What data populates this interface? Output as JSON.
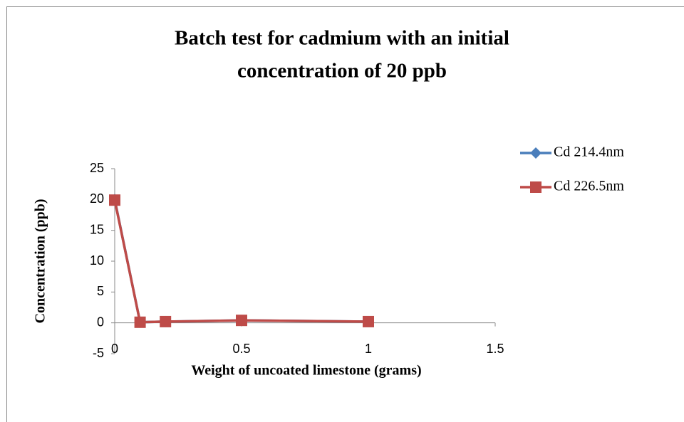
{
  "chart_data": {
    "type": "line",
    "title": [
      "Batch test for cadmium with an initial",
      "concentration of 20 ppb"
    ],
    "x_label": "Weight of uncoated limestone (grams)",
    "y_label": "Concentration (ppb)",
    "x": [
      0,
      0.1,
      0.2,
      0.5,
      1
    ],
    "series": [
      {
        "name": "Cd 214.4nm",
        "color": "#4a7ebb",
        "marker": "diamond",
        "values": [
          20,
          0.1,
          0.2,
          0.4,
          0.2
        ]
      },
      {
        "name": "Cd 226.5nm",
        "color": "#be4b48",
        "marker": "square",
        "values": [
          19.9,
          0.1,
          0.2,
          0.4,
          0.2
        ]
      }
    ],
    "xlim": [
      0,
      1.5
    ],
    "xticks": [
      0,
      0.5,
      1,
      1.5
    ],
    "ylim": [
      -5,
      25
    ],
    "yticks": [
      -5,
      0,
      5,
      10,
      15,
      20,
      25
    ],
    "grid": false,
    "legend": "right"
  }
}
